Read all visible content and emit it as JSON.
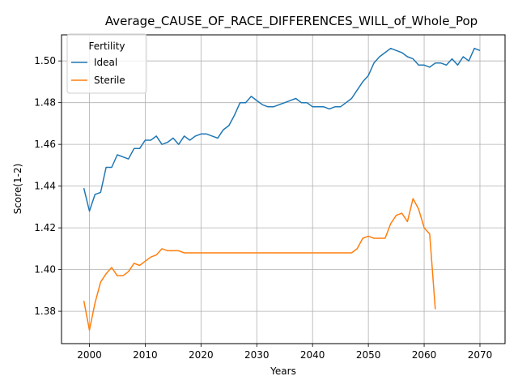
{
  "chart_data": {
    "type": "line",
    "title": "Average_CAUSE_OF_RACE_DIFFERENCES_WILL_of_Whole_Pop",
    "xlabel": "Years",
    "ylabel": "Score(1-2)",
    "xlim": [
      1995,
      2074.5
    ],
    "ylim": [
      1.3645,
      1.5125
    ],
    "x_ticks": [
      2000,
      2010,
      2020,
      2030,
      2040,
      2050,
      2060,
      2070
    ],
    "y_ticks": [
      1.38,
      1.4,
      1.42,
      1.44,
      1.46,
      1.48,
      1.5
    ],
    "y_tick_labels": [
      "1.38",
      "1.40",
      "1.42",
      "1.44",
      "1.46",
      "1.48",
      "1.50"
    ],
    "grid": true,
    "legend": {
      "title": "Fertility",
      "placement": "top-left"
    },
    "series": [
      {
        "name": "Ideal",
        "color": "#1f77b4",
        "x": [
          1999,
          2000,
          2001,
          2002,
          2003,
          2004,
          2005,
          2006,
          2007,
          2008,
          2009,
          2010,
          2011,
          2012,
          2013,
          2014,
          2015,
          2016,
          2017,
          2018,
          2019,
          2020,
          2021,
          2022,
          2023,
          2024,
          2025,
          2026,
          2027,
          2028,
          2029,
          2030,
          2031,
          2032,
          2033,
          2034,
          2035,
          2036,
          2037,
          2038,
          2039,
          2040,
          2041,
          2042,
          2043,
          2044,
          2045,
          2046,
          2047,
          2048,
          2049,
          2050,
          2051,
          2052,
          2053,
          2054,
          2055,
          2056,
          2057,
          2058,
          2059,
          2060,
          2061,
          2062,
          2063,
          2064,
          2065,
          2066,
          2067,
          2068,
          2069,
          2070
        ],
        "values": [
          1.439,
          1.428,
          1.436,
          1.437,
          1.449,
          1.449,
          1.455,
          1.454,
          1.453,
          1.458,
          1.458,
          1.462,
          1.462,
          1.464,
          1.46,
          1.461,
          1.463,
          1.46,
          1.464,
          1.462,
          1.464,
          1.465,
          1.465,
          1.464,
          1.463,
          1.467,
          1.469,
          1.474,
          1.48,
          1.48,
          1.483,
          1.481,
          1.479,
          1.478,
          1.478,
          1.479,
          1.48,
          1.481,
          1.482,
          1.48,
          1.48,
          1.478,
          1.478,
          1.478,
          1.477,
          1.478,
          1.478,
          1.48,
          1.482,
          1.486,
          1.49,
          1.493,
          1.499,
          1.502,
          1.504,
          1.506,
          1.505,
          1.504,
          1.502,
          1.501,
          1.498,
          1.498,
          1.497,
          1.499,
          1.499,
          1.498,
          1.501,
          1.498,
          1.502,
          1.5,
          1.506,
          1.505
        ]
      },
      {
        "name": "Sterile",
        "color": "#ff7f0e",
        "x": [
          1999,
          2000,
          2001,
          2002,
          2003,
          2004,
          2005,
          2006,
          2007,
          2008,
          2009,
          2010,
          2011,
          2012,
          2013,
          2014,
          2015,
          2016,
          2017,
          2018,
          2019,
          2020,
          2021,
          2022,
          2023,
          2024,
          2025,
          2026,
          2027,
          2028,
          2029,
          2030,
          2031,
          2032,
          2033,
          2034,
          2035,
          2036,
          2037,
          2038,
          2039,
          2040,
          2041,
          2042,
          2043,
          2044,
          2045,
          2046,
          2047,
          2048,
          2049,
          2050,
          2051,
          2052,
          2053,
          2054,
          2055,
          2056,
          2057,
          2058,
          2059,
          2060,
          2061,
          2062
        ],
        "values": [
          1.385,
          1.371,
          1.384,
          1.394,
          1.398,
          1.401,
          1.397,
          1.397,
          1.399,
          1.403,
          1.402,
          1.404,
          1.406,
          1.407,
          1.41,
          1.409,
          1.409,
          1.409,
          1.408,
          1.408,
          1.408,
          1.408,
          1.408,
          1.408,
          1.408,
          1.408,
          1.408,
          1.408,
          1.408,
          1.408,
          1.408,
          1.408,
          1.408,
          1.408,
          1.408,
          1.408,
          1.408,
          1.408,
          1.408,
          1.408,
          1.408,
          1.408,
          1.408,
          1.408,
          1.408,
          1.408,
          1.408,
          1.408,
          1.408,
          1.41,
          1.415,
          1.416,
          1.415,
          1.415,
          1.415,
          1.422,
          1.426,
          1.427,
          1.423,
          1.434,
          1.429,
          1.42,
          1.417,
          1.381
        ]
      }
    ]
  }
}
